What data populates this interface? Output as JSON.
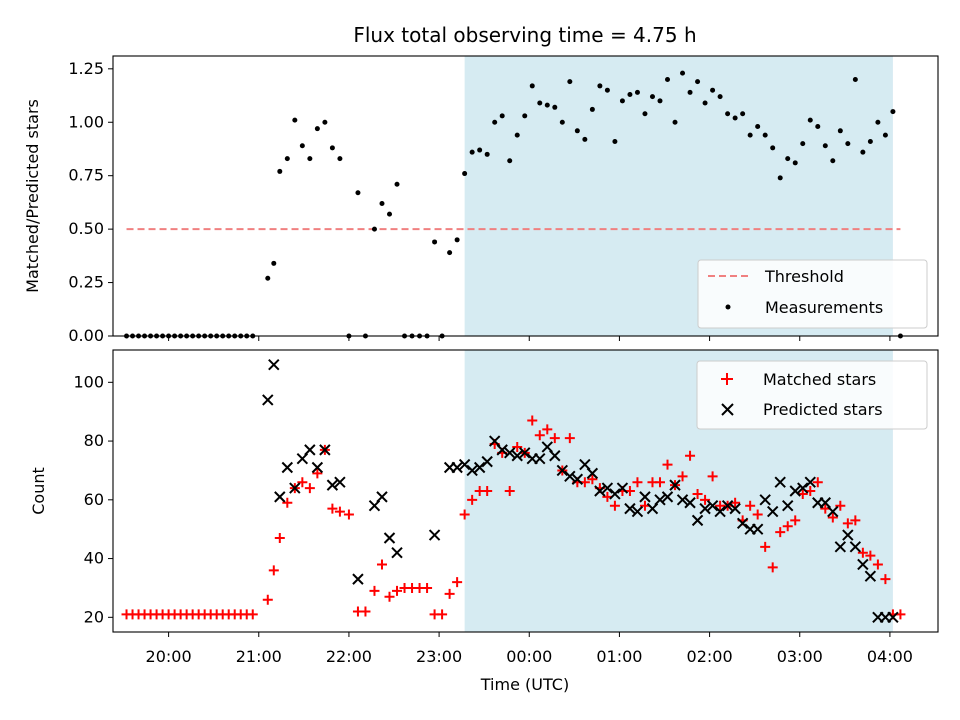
{
  "chart_data": {
    "title": "Flux total observing time = 4.75 h",
    "xlabel": "Time (UTC)",
    "colors": {
      "shade": "#add8e6",
      "threshold": "#f08080",
      "measurements": "#000000",
      "matched": "#ff0000",
      "predicted": "#000000"
    },
    "x_ticks": [
      "20:00",
      "21:00",
      "22:00",
      "23:00",
      "00:00",
      "01:00",
      "02:00",
      "03:00",
      "04:00"
    ],
    "x_tick_hours": [
      20,
      21,
      22,
      23,
      24,
      25,
      26,
      27,
      28
    ],
    "xlim": [
      "19:23",
      "04:32"
    ],
    "shaded_span": [
      "23:17",
      "04:02"
    ],
    "panels": [
      {
        "type": "scatter",
        "ylabel": "Matched/Predicted stars",
        "ylim": [
          0,
          1.31
        ],
        "y_ticks": [
          "0.00",
          "0.25",
          "0.50",
          "0.75",
          "1.00",
          "1.25"
        ],
        "grid": false,
        "legend_position": "lower right",
        "threshold": {
          "name": "Threshold",
          "y": 0.5,
          "x_start": "19:32",
          "x_end": "04:07",
          "style": "dashed"
        },
        "series": [
          {
            "name": "Measurements",
            "marker": "dot",
            "x": [
              "19:32",
              "19:36",
              "19:40",
              "19:44",
              "19:48",
              "19:52",
              "19:56",
              "20:00",
              "20:04",
              "20:08",
              "20:12",
              "20:16",
              "20:20",
              "20:24",
              "20:28",
              "20:32",
              "20:36",
              "20:40",
              "20:44",
              "20:48",
              "20:52",
              "20:56",
              "21:06",
              "21:10",
              "21:14",
              "21:19",
              "21:24",
              "21:29",
              "21:34",
              "21:39",
              "21:44",
              "21:49",
              "21:54",
              "22:00",
              "22:06",
              "22:11",
              "22:17",
              "22:22",
              "22:27",
              "22:32",
              "22:37",
              "22:42",
              "22:47",
              "22:52",
              "22:57",
              "23:02",
              "23:07",
              "23:12",
              "23:17",
              "23:22",
              "23:27",
              "23:32",
              "23:37",
              "23:42",
              "23:47",
              "23:52",
              "23:57",
              "24:02",
              "24:07",
              "24:12",
              "24:17",
              "24:22",
              "24:27",
              "24:32",
              "24:37",
              "24:42",
              "24:47",
              "24:52",
              "24:57",
              "25:02",
              "25:07",
              "25:12",
              "25:17",
              "25:22",
              "25:27",
              "25:32",
              "25:37",
              "25:42",
              "25:47",
              "25:52",
              "25:57",
              "26:02",
              "26:07",
              "26:12",
              "26:17",
              "26:22",
              "26:27",
              "26:32",
              "26:37",
              "26:42",
              "26:47",
              "26:52",
              "26:57",
              "27:02",
              "27:07",
              "27:12",
              "27:17",
              "27:22",
              "27:27",
              "27:32",
              "27:37",
              "27:42",
              "27:47",
              "27:52",
              "27:57",
              "28:02",
              "28:07"
            ],
            "y": [
              0,
              0,
              0,
              0,
              0,
              0,
              0,
              0,
              0,
              0,
              0,
              0,
              0,
              0,
              0,
              0,
              0,
              0,
              0,
              0,
              0,
              0,
              0.27,
              0.34,
              0.77,
              0.83,
              1.01,
              0.89,
              0.83,
              0.97,
              1.0,
              0.88,
              0.83,
              0,
              0.67,
              0,
              0.5,
              0.62,
              0.57,
              0.71,
              0,
              0,
              0,
              0,
              0.44,
              0,
              0.39,
              0.45,
              0.76,
              0.86,
              0.87,
              0.85,
              1.0,
              1.03,
              0.82,
              0.94,
              1.03,
              1.17,
              1.09,
              1.08,
              1.07,
              1.0,
              1.19,
              0.96,
              0.92,
              1.06,
              1.17,
              1.15,
              0.91,
              1.1,
              1.13,
              1.14,
              1.04,
              1.12,
              1.1,
              1.2,
              1.0,
              1.23,
              1.14,
              1.19,
              1.09,
              1.15,
              1.12,
              1.04,
              1.02,
              1.04,
              0.94,
              0.98,
              0.94,
              0.88,
              0.74,
              0.83,
              0.81,
              0.9,
              1.01,
              0.98,
              0.89,
              0.82,
              0.96,
              0.9,
              1.2,
              0.86,
              0.91,
              1.0,
              0.94,
              1.05,
              0
            ]
          }
        ]
      },
      {
        "type": "scatter",
        "ylabel": "Count",
        "ylim": [
          15,
          111
        ],
        "y_ticks": [
          "20",
          "40",
          "60",
          "80",
          "100"
        ],
        "grid": false,
        "legend_position": "upper right",
        "series": [
          {
            "name": "Matched stars",
            "marker": "plus",
            "x": [
              "19:32",
              "19:36",
              "19:40",
              "19:44",
              "19:48",
              "19:52",
              "19:56",
              "20:00",
              "20:04",
              "20:08",
              "20:12",
              "20:16",
              "20:20",
              "20:24",
              "20:28",
              "20:32",
              "20:36",
              "20:40",
              "20:44",
              "20:48",
              "20:52",
              "20:56",
              "21:06",
              "21:10",
              "21:14",
              "21:19",
              "21:24",
              "21:29",
              "21:34",
              "21:39",
              "21:44",
              "21:49",
              "21:54",
              "22:00",
              "22:06",
              "22:11",
              "22:17",
              "22:22",
              "22:27",
              "22:32",
              "22:37",
              "22:42",
              "22:47",
              "22:52",
              "22:57",
              "23:02",
              "23:07",
              "23:12",
              "23:17",
              "23:22",
              "23:27",
              "23:32",
              "23:37",
              "23:42",
              "23:47",
              "23:52",
              "23:57",
              "24:02",
              "24:07",
              "24:12",
              "24:17",
              "24:22",
              "24:27",
              "24:32",
              "24:37",
              "24:42",
              "24:47",
              "24:52",
              "24:57",
              "25:02",
              "25:07",
              "25:12",
              "25:17",
              "25:22",
              "25:27",
              "25:32",
              "25:37",
              "25:42",
              "25:47",
              "25:52",
              "25:57",
              "26:02",
              "26:07",
              "26:12",
              "26:17",
              "26:22",
              "26:27",
              "26:32",
              "26:37",
              "26:42",
              "26:47",
              "26:52",
              "26:57",
              "27:02",
              "27:07",
              "27:12",
              "27:17",
              "27:22",
              "27:27",
              "27:32",
              "27:37",
              "27:42",
              "27:47",
              "27:52",
              "27:57",
              "28:02",
              "28:07"
            ],
            "y": [
              21,
              21,
              21,
              21,
              21,
              21,
              21,
              21,
              21,
              21,
              21,
              21,
              21,
              21,
              21,
              21,
              21,
              21,
              21,
              21,
              21,
              21,
              26,
              36,
              47,
              59,
              64,
              66,
              64,
              69,
              77,
              57,
              56,
              55,
              22,
              22,
              29,
              38,
              27,
              29,
              30,
              30,
              30,
              30,
              21,
              21,
              28,
              32,
              55,
              60,
              63,
              63,
              79,
              76,
              63,
              78,
              76,
              87,
              82,
              84,
              81,
              70,
              81,
              66,
              66,
              67,
              64,
              61,
              58,
              63,
              63,
              66,
              58,
              66,
              66,
              72,
              65,
              68,
              75,
              62,
              60,
              68,
              58,
              58,
              59,
              53,
              58,
              55,
              44,
              37,
              49,
              51,
              53,
              62,
              63,
              66,
              57,
              54,
              58,
              52,
              53,
              42,
              41,
              38,
              33,
              21,
              21
            ]
          },
          {
            "name": "Predicted stars",
            "marker": "x",
            "x": [
              "21:06",
              "21:10",
              "21:14",
              "21:19",
              "21:24",
              "21:29",
              "21:34",
              "21:39",
              "21:44",
              "21:49",
              "21:54",
              "22:06",
              "22:17",
              "22:22",
              "22:27",
              "22:32",
              "22:57",
              "23:07",
              "23:12",
              "23:17",
              "23:22",
              "23:27",
              "23:32",
              "23:37",
              "23:42",
              "23:47",
              "23:52",
              "23:57",
              "24:02",
              "24:07",
              "24:12",
              "24:17",
              "24:22",
              "24:27",
              "24:32",
              "24:37",
              "24:42",
              "24:47",
              "24:52",
              "24:57",
              "25:02",
              "25:07",
              "25:12",
              "25:17",
              "25:22",
              "25:27",
              "25:32",
              "25:37",
              "25:42",
              "25:47",
              "25:52",
              "25:57",
              "26:02",
              "26:07",
              "26:12",
              "26:17",
              "26:22",
              "26:27",
              "26:32",
              "26:37",
              "26:42",
              "26:47",
              "26:52",
              "26:57",
              "27:02",
              "27:07",
              "27:12",
              "27:17",
              "27:22",
              "27:27",
              "27:32",
              "27:37",
              "27:42",
              "27:47",
              "27:52",
              "27:57",
              "28:02"
            ],
            "y": [
              94,
              106,
              61,
              71,
              64,
              74,
              77,
              71,
              77,
              65,
              66,
              33,
              58,
              61,
              47,
              42,
              48,
              71,
              71,
              72,
              70,
              71,
              73,
              80,
              77,
              76,
              75,
              76,
              74,
              74,
              78,
              75,
              70,
              68,
              67,
              72,
              69,
              63,
              64,
              62,
              64,
              57,
              56,
              61,
              57,
              60,
              61,
              65,
              60,
              59,
              53,
              57,
              58,
              56,
              58,
              57,
              52,
              50,
              50,
              60,
              56,
              66,
              58,
              63,
              64,
              66,
              59,
              59,
              56,
              44,
              48,
              44,
              38,
              34,
              20,
              20,
              20
            ]
          }
        ]
      }
    ]
  }
}
